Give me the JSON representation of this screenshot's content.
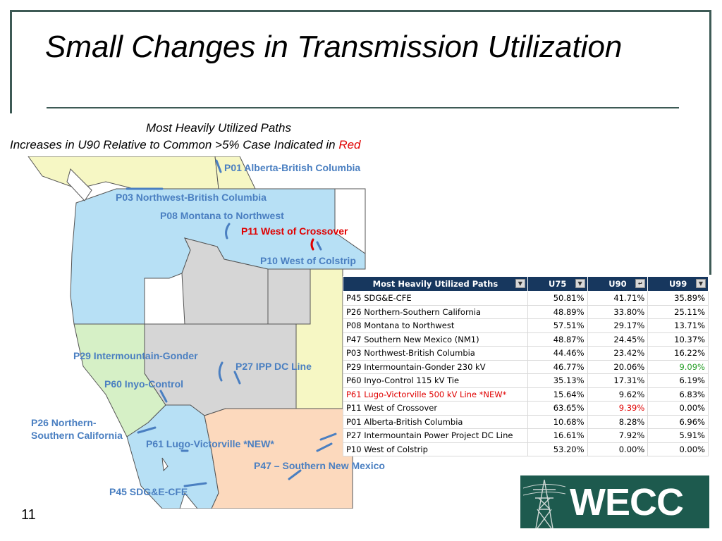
{
  "slide": {
    "title": "Small Changes in Transmission Utilization",
    "subtitle_line1": "Most Heavily Utilized Paths",
    "subtitle_line2_prefix": "Increases in U90 Relative to Common >5% Case Indicated in ",
    "subtitle_line2_red": "Red",
    "page_number": "11"
  },
  "map_labels": {
    "p01": "P01 Alberta-British Columbia",
    "p03": "P03 Northwest-British Columbia",
    "p08": "P08 Montana to Northwest",
    "p11": "P11 West of Crossover",
    "p10": "P10 West of Colstrip",
    "p29": "P29 Intermountain-Gonder",
    "p27": "P27 IPP DC Line",
    "p60": "P60 Inyo-Control",
    "p26_line1": "P26 Northern-",
    "p26_line2": "Southern California",
    "p61": "P61 Lugo-Victorville *NEW*",
    "p47": "P47 – Southern New Mexico",
    "p45": "P45 SDG&E-CFE"
  },
  "table": {
    "headers": [
      "Most Heavily Utilized Paths",
      "U75",
      "U90",
      "U99"
    ],
    "rows": [
      {
        "name": "P45 SDG&E-CFE",
        "u75": "50.81%",
        "u90": "41.71%",
        "u99": "35.89%"
      },
      {
        "name": "P26 Northern-Southern California",
        "u75": "48.89%",
        "u90": "33.80%",
        "u99": "25.11%"
      },
      {
        "name": "P08 Montana to Northwest",
        "u75": "57.51%",
        "u90": "29.17%",
        "u99": "13.71%"
      },
      {
        "name": "P47 Southern New Mexico (NM1)",
        "u75": "48.87%",
        "u90": "24.45%",
        "u99": "10.37%"
      },
      {
        "name": "P03 Northwest-British Columbia",
        "u75": "44.46%",
        "u90": "23.42%",
        "u99": "16.22%"
      },
      {
        "name": "P29 Intermountain-Gonder 230 kV",
        "u75": "46.77%",
        "u90": "20.06%",
        "u99": "9.09%"
      },
      {
        "name": "P60 Inyo-Control 115 kV Tie",
        "u75": "35.13%",
        "u90": "17.31%",
        "u99": "6.19%"
      },
      {
        "name": "P61 Lugo-Victorville 500 kV Line *NEW*",
        "u75": "15.64%",
        "u90": "9.62%",
        "u99": "6.83%"
      },
      {
        "name": "P11 West of Crossover",
        "u75": "63.65%",
        "u90": "9.39%",
        "u99": "0.00%"
      },
      {
        "name": "P01 Alberta-British Columbia",
        "u75": "10.68%",
        "u90": "8.28%",
        "u99": "6.96%"
      },
      {
        "name": "P27 Intermountain Power Project DC Line",
        "u75": "16.61%",
        "u90": "7.92%",
        "u99": "5.91%"
      },
      {
        "name": "P10 West of Colstrip",
        "u75": "53.20%",
        "u90": "0.00%",
        "u99": "0.00%"
      }
    ]
  },
  "logo": {
    "text": "WECC"
  },
  "colors": {
    "accent_red": "#e00000",
    "label_blue": "#4a7fc1",
    "header_navy": "#17375e",
    "logo_green": "#1d5a4e",
    "highlight_green": "#2aa02a"
  }
}
